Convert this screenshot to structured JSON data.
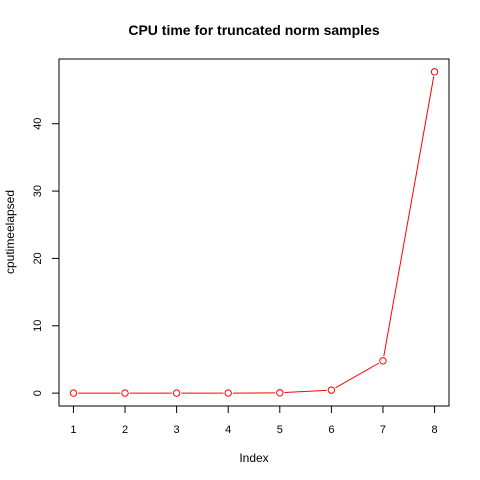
{
  "chart_data": {
    "type": "line",
    "title": "CPU time for truncated norm samples",
    "xlabel": "Index",
    "ylabel": "cputimeelapsed",
    "x": [
      1,
      2,
      3,
      4,
      5,
      6,
      7,
      8
    ],
    "series": [
      {
        "values": [
          0.0,
          0.0,
          0.0,
          0.0,
          0.05,
          0.45,
          4.8,
          47.7
        ],
        "color": "#ff0000",
        "marker": "open-circle"
      }
    ],
    "xlim": [
      0.72,
      8.28
    ],
    "ylim": [
      -1.91,
      49.61
    ],
    "xticks": [
      1,
      2,
      3,
      4,
      5,
      6,
      7,
      8
    ],
    "yticks": [
      0,
      10,
      20,
      30,
      40
    ],
    "grid": false
  }
}
